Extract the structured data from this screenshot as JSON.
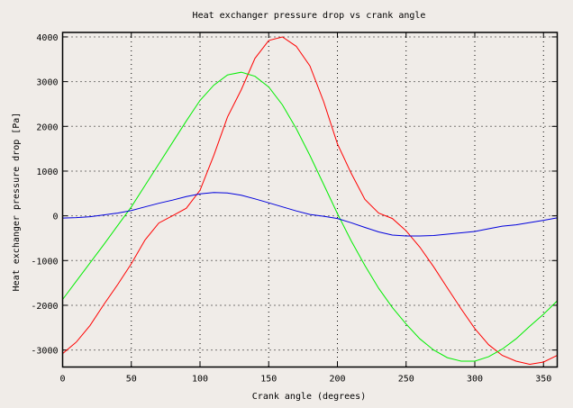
{
  "chart_data": {
    "type": "line",
    "title": "Heat exchanger pressure drop vs crank angle",
    "xlabel": "Crank angle (degrees)",
    "ylabel": "Heat exchanger pressure drop [Pa]",
    "xlim": [
      0,
      360
    ],
    "ylim": [
      -3380,
      4100
    ],
    "xticks": [
      0,
      50,
      100,
      150,
      200,
      250,
      300,
      350
    ],
    "yticks": [
      -3000,
      -2000,
      -1000,
      0,
      1000,
      2000,
      3000,
      4000
    ],
    "grid": true,
    "x": [
      0,
      10,
      20,
      30,
      40,
      50,
      60,
      70,
      80,
      90,
      100,
      110,
      120,
      130,
      140,
      150,
      160,
      170,
      180,
      190,
      200,
      210,
      220,
      230,
      240,
      250,
      260,
      270,
      280,
      290,
      300,
      310,
      320,
      330,
      340,
      350,
      360
    ],
    "series": [
      {
        "color": "#ff0000",
        "values": [
          -3080,
          -2820,
          -2450,
          -1980,
          -1540,
          -1070,
          -540,
          -160,
          0,
          170,
          570,
          1350,
          2210,
          2820,
          3520,
          3920,
          4000,
          3790,
          3350,
          2550,
          1610,
          950,
          370,
          60,
          -60,
          -335,
          -700,
          -1140,
          -1610,
          -2080,
          -2520,
          -2880,
          -3120,
          -3250,
          -3320,
          -3270,
          -3120
        ]
      },
      {
        "color": "#00ee00",
        "values": [
          -1870,
          -1460,
          -1050,
          -640,
          -220,
          200,
          680,
          1160,
          1640,
          2120,
          2580,
          2920,
          3150,
          3210,
          3120,
          2880,
          2480,
          1950,
          1350,
          700,
          50,
          -560,
          -1110,
          -1620,
          -2050,
          -2420,
          -2750,
          -3000,
          -3170,
          -3250,
          -3250,
          -3150,
          -2980,
          -2750,
          -2470,
          -2200,
          -1900
        ]
      },
      {
        "color": "#0000dd",
        "values": [
          -50,
          -40,
          -20,
          20,
          60,
          120,
          200,
          280,
          350,
          430,
          490,
          520,
          510,
          460,
          380,
          290,
          200,
          110,
          30,
          -10,
          -60,
          -155,
          -260,
          -360,
          -430,
          -450,
          -450,
          -440,
          -410,
          -380,
          -350,
          -290,
          -230,
          -200,
          -150,
          -100,
          -45
        ]
      }
    ]
  }
}
